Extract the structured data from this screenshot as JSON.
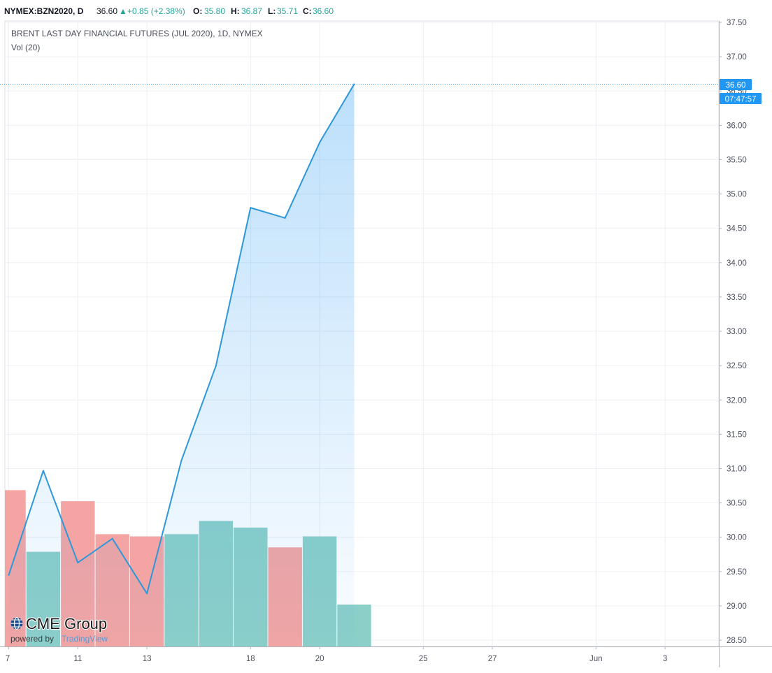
{
  "header": {
    "symbol": "NYMEX:BZN2020, D",
    "last": "36.60",
    "change_arrow": "▲",
    "change": "+0.85 (+2.38%)",
    "open_label": "O:",
    "open": "35.80",
    "high_label": "H:",
    "high": "36.87",
    "low_label": "L:",
    "low": "35.71",
    "close_label": "C:",
    "close": "36.60",
    "positive_color": "#26a69a"
  },
  "legend": {
    "title": "BRENT LAST DAY FINANCIAL FUTURES (JUL 2020), 1D, NYMEX",
    "volume": "Vol (20)"
  },
  "price_tag": {
    "value": "36.60",
    "countdown": "07:47:57",
    "color": "#2196f3"
  },
  "branding": {
    "logo": "CME Group",
    "powered_by": "powered by",
    "provider": "TradingView"
  },
  "chart_data": {
    "type": "area",
    "title": "BRENT LAST DAY FINANCIAL FUTURES (JUL 2020), 1D, NYMEX",
    "x": [
      "7",
      "8",
      "11",
      "12",
      "13",
      "14",
      "15",
      "18",
      "19",
      "20",
      "21"
    ],
    "y": [
      29.45,
      30.97,
      29.63,
      29.98,
      29.18,
      31.12,
      32.5,
      34.8,
      34.65,
      35.75,
      36.6
    ],
    "volume_series": {
      "name": "Vol (20)",
      "bars": [
        {
          "x": "7",
          "direction": "down"
        },
        {
          "x": "8",
          "direction": "up"
        },
        {
          "x": "11",
          "direction": "down"
        },
        {
          "x": "12",
          "direction": "down"
        },
        {
          "x": "13",
          "direction": "down"
        },
        {
          "x": "14",
          "direction": "up"
        },
        {
          "x": "15",
          "direction": "up"
        },
        {
          "x": "18",
          "direction": "up"
        },
        {
          "x": "19",
          "direction": "down"
        },
        {
          "x": "20",
          "direction": "up"
        },
        {
          "x": "21",
          "direction": "up"
        }
      ],
      "relative_heights": [
        0.71,
        0.43,
        0.66,
        0.51,
        0.5,
        0.51,
        0.57,
        0.54,
        0.45,
        0.5,
        0.19
      ],
      "up_color": "#8ccfc9",
      "down_color": "#f4a5a3"
    },
    "x_tick_labels": [
      "7",
      "11",
      "13",
      "18",
      "20",
      "25",
      "27",
      "Jun",
      "3"
    ],
    "y_tick_labels": [
      "28.50",
      "29.00",
      "29.50",
      "30.00",
      "30.50",
      "31.00",
      "31.50",
      "32.00",
      "32.50",
      "33.00",
      "33.50",
      "34.00",
      "34.50",
      "35.00",
      "35.50",
      "36.00",
      "36.50",
      "37.00",
      "37.50"
    ],
    "ylim": [
      28.45,
      37.5
    ],
    "last_price_line": 36.6,
    "grid": true,
    "line_color": "#2e97d9",
    "axis_side": "right"
  }
}
